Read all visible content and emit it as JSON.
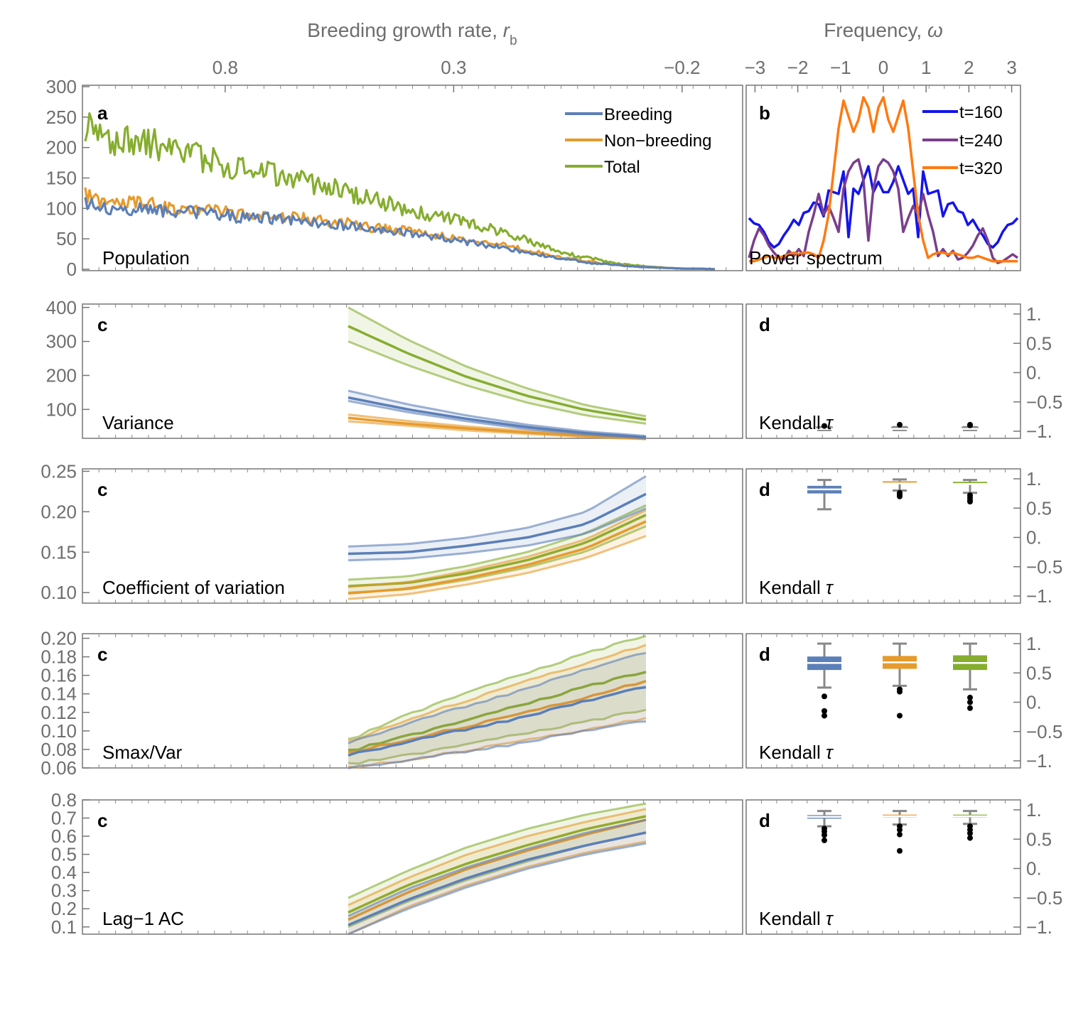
{
  "colors": {
    "breeding": "#5b7fb8",
    "nonbreeding": "#e69b2c",
    "total": "#86ad2f",
    "t160": "#1414ee",
    "t240": "#7a3e8c",
    "t320": "#ff7a10"
  },
  "top_axis": {
    "label_main": "Breeding growth rate, ",
    "label_italic": "r",
    "label_sub": "b"
  },
  "freq_axis": {
    "label_main": "Frequency, ",
    "label_italic": "ω"
  },
  "panel_letters": {
    "a": "a",
    "b": "b",
    "c": "c",
    "d": "d"
  },
  "titles": {
    "population": "Population",
    "power_spectrum": "Power spectrum",
    "variance": "Variance",
    "cv": "Coefficient of variation",
    "smax": "Smax/Var",
    "lag1": "Lag−1 AC",
    "kendall_main": "Kendall ",
    "kendall_sym": "τ"
  },
  "legend_a": [
    "Breeding",
    "Non−breeding",
    "Total"
  ],
  "legend_b": [
    "t=160",
    "t=240",
    "t=320"
  ],
  "chart_data": [
    {
      "id": "a",
      "type": "line",
      "title": "Population",
      "xlabel": "Breeding growth rate, r_b",
      "xlim": [
        1.1,
        -0.32
      ],
      "xticks": [
        0.8,
        0.3,
        -0.2
      ],
      "xtick_labels": [
        "0.8",
        "0.3",
        "−0.2"
      ],
      "ylim": [
        0,
        300
      ],
      "yticks": [
        0,
        50,
        100,
        150,
        200,
        250,
        300
      ],
      "series": [
        {
          "name": "Breeding",
          "x_start": 1.1,
          "x_end": -0.32,
          "values": [
            108,
            100,
            96,
            100,
            104,
            96,
            88,
            95,
            92,
            90,
            85,
            86,
            84,
            82,
            80,
            76,
            74,
            72,
            68,
            64,
            62,
            60,
            57,
            52,
            48,
            44,
            40,
            36,
            31,
            26,
            22,
            18,
            14,
            10,
            8,
            6,
            4,
            3,
            2,
            1,
            1,
            0
          ]
        },
        {
          "name": "Non−breeding",
          "x_start": 1.1,
          "x_end": -0.32,
          "values": [
            122,
            115,
            110,
            112,
            108,
            102,
            96,
            100,
            98,
            95,
            90,
            90,
            88,
            86,
            84,
            80,
            78,
            76,
            70,
            68,
            66,
            64,
            60,
            56,
            52,
            48,
            44,
            40,
            36,
            30,
            26,
            20,
            16,
            12,
            8,
            6,
            4,
            3,
            2,
            1,
            1,
            0
          ]
        },
        {
          "name": "Total",
          "x_start": 1.1,
          "x_end": -0.32,
          "values": [
            230,
            222,
            212,
            208,
            210,
            200,
            188,
            186,
            180,
            172,
            165,
            160,
            158,
            150,
            145,
            140,
            135,
            128,
            118,
            112,
            105,
            98,
            92,
            88,
            82,
            76,
            70,
            62,
            55,
            45,
            36,
            28,
            22,
            18,
            12,
            8,
            6,
            4,
            2,
            1,
            1,
            0
          ]
        }
      ]
    },
    {
      "id": "b",
      "type": "line",
      "title": "Power spectrum",
      "xlabel": "Frequency, ω",
      "xlim": [
        -3.14,
        3.14
      ],
      "xticks": [
        -3,
        -2,
        -1,
        0,
        1,
        2,
        3
      ],
      "xtick_labels": [
        "−3",
        "−2",
        "−1",
        "0",
        "1",
        "2",
        "3"
      ],
      "ylim": [
        0,
        1
      ],
      "series": [
        {
          "name": "t=160",
          "values": [
            0.28,
            0.25,
            0.24,
            0.2,
            0.14,
            0.11,
            0.13,
            0.18,
            0.22,
            0.27,
            0.24,
            0.31,
            0.32,
            0.37,
            0.36,
            0.29,
            0.44,
            0.43,
            0.42,
            0.55,
            0.17,
            0.45,
            0.42,
            0.5,
            0.58,
            0.43,
            0.49,
            0.43,
            0.43,
            0.49,
            0.58,
            0.5,
            0.42,
            0.45,
            0.17,
            0.55,
            0.42,
            0.43,
            0.44,
            0.29,
            0.36,
            0.37,
            0.32,
            0.31,
            0.24,
            0.27,
            0.22,
            0.18,
            0.13,
            0.11,
            0.14,
            0.2,
            0.24,
            0.25,
            0.28
          ]
        },
        {
          "name": "t=240",
          "values": [
            0.05,
            0.15,
            0.22,
            0.18,
            0.12,
            0.08,
            0.05,
            0.04,
            0.09,
            0.06,
            0.1,
            0.06,
            0.2,
            0.3,
            0.42,
            0.3,
            0.35,
            0.28,
            0.2,
            0.45,
            0.55,
            0.6,
            0.62,
            0.5,
            0.15,
            0.45,
            0.58,
            0.62,
            0.6,
            0.55,
            0.45,
            0.2,
            0.28,
            0.35,
            0.3,
            0.42,
            0.3,
            0.2,
            0.06,
            0.1,
            0.06,
            0.09,
            0.04,
            0.05,
            0.08,
            0.12,
            0.18,
            0.22,
            0.15,
            0.05,
            0.02,
            0.03,
            0.05,
            0.07,
            0.05
          ]
        },
        {
          "name": "t=320",
          "values": [
            0.03,
            0.03,
            0.04,
            0.05,
            0.06,
            0.05,
            0.05,
            0.06,
            0.07,
            0.08,
            0.07,
            0.08,
            0.08,
            0.07,
            0.05,
            0.15,
            0.3,
            0.55,
            0.8,
            0.96,
            0.87,
            0.78,
            0.85,
            0.98,
            0.92,
            0.78,
            0.92,
            0.98,
            0.85,
            0.78,
            0.87,
            0.96,
            0.8,
            0.55,
            0.3,
            0.15,
            0.05,
            0.07,
            0.08,
            0.08,
            0.07,
            0.08,
            0.07,
            0.06,
            0.05,
            0.05,
            0.06,
            0.05,
            0.04,
            0.03,
            0.03,
            0.03,
            0.03,
            0.03,
            0.03
          ]
        }
      ]
    },
    {
      "id": "c-variance",
      "type": "area",
      "title": "Variance",
      "x_start": 0.51,
      "x_end": 0.02,
      "ylim": [
        15,
        410
      ],
      "yticks": [
        100,
        200,
        300,
        400
      ],
      "ytick_labels": [
        "100",
        "200",
        "300",
        "400"
      ],
      "series": [
        {
          "name": "Breeding",
          "mean": [
            135,
            100,
            72,
            48,
            30,
            18
          ],
          "lo": [
            125,
            92,
            65,
            42,
            26,
            15
          ],
          "hi": [
            155,
            115,
            82,
            55,
            35,
            22
          ]
        },
        {
          "name": "Non−breeding",
          "mean": [
            75,
            58,
            44,
            32,
            22,
            14
          ],
          "lo": [
            65,
            52,
            38,
            28,
            19,
            12
          ],
          "hi": [
            85,
            66,
            50,
            37,
            26,
            17
          ]
        },
        {
          "name": "Total",
          "mean": [
            345,
            265,
            195,
            140,
            98,
            70
          ],
          "lo": [
            300,
            230,
            170,
            120,
            82,
            58
          ],
          "hi": [
            400,
            305,
            225,
            162,
            112,
            80
          ]
        }
      ]
    },
    {
      "id": "c-cv",
      "type": "area",
      "title": "Coefficient of variation",
      "x_start": 0.51,
      "x_end": 0.02,
      "ylim": [
        0.087,
        0.253
      ],
      "yticks": [
        0.1,
        0.15,
        0.2,
        0.25
      ],
      "ytick_labels": [
        "0.10",
        "0.15",
        "0.20",
        "0.25"
      ],
      "series": [
        {
          "name": "Breeding",
          "mean": [
            0.148,
            0.15,
            0.158,
            0.168,
            0.185,
            0.222
          ],
          "lo": [
            0.14,
            0.142,
            0.149,
            0.158,
            0.173,
            0.204
          ],
          "hi": [
            0.157,
            0.16,
            0.168,
            0.18,
            0.2,
            0.244
          ]
        },
        {
          "name": "Non−breeding",
          "mean": [
            0.099,
            0.105,
            0.118,
            0.134,
            0.155,
            0.188
          ],
          "lo": [
            0.092,
            0.098,
            0.11,
            0.124,
            0.143,
            0.17
          ],
          "hi": [
            0.107,
            0.113,
            0.127,
            0.144,
            0.166,
            0.202
          ]
        },
        {
          "name": "Total",
          "mean": [
            0.108,
            0.112,
            0.124,
            0.14,
            0.162,
            0.196
          ],
          "lo": [
            0.1,
            0.104,
            0.116,
            0.131,
            0.151,
            0.182
          ],
          "hi": [
            0.116,
            0.12,
            0.133,
            0.15,
            0.174,
            0.208
          ]
        }
      ]
    },
    {
      "id": "c-smax",
      "type": "area",
      "title": "Smax/Var",
      "x_start": 0.51,
      "x_end": 0.02,
      "ylim": [
        0.06,
        0.205
      ],
      "yticks": [
        0.06,
        0.08,
        0.1,
        0.12,
        0.14,
        0.16,
        0.18,
        0.2
      ],
      "ytick_labels": [
        "0.06",
        "0.08",
        "0.10",
        "0.12",
        "0.14",
        "0.16",
        "0.18",
        "0.20"
      ],
      "series": [
        {
          "name": "Breeding",
          "mean": [
            0.074,
            0.088,
            0.102,
            0.116,
            0.132,
            0.148
          ],
          "lo": [
            0.06,
            0.068,
            0.078,
            0.088,
            0.1,
            0.111
          ],
          "hi": [
            0.087,
            0.108,
            0.127,
            0.146,
            0.166,
            0.185
          ]
        },
        {
          "name": "Non−breeding",
          "mean": [
            0.076,
            0.09,
            0.105,
            0.12,
            0.137,
            0.154
          ],
          "lo": [
            0.06,
            0.068,
            0.079,
            0.09,
            0.102,
            0.114
          ],
          "hi": [
            0.088,
            0.112,
            0.133,
            0.154,
            0.174,
            0.193
          ]
        },
        {
          "name": "Total",
          "mean": [
            0.078,
            0.095,
            0.112,
            0.13,
            0.148,
            0.164
          ],
          "lo": [
            0.064,
            0.074,
            0.086,
            0.098,
            0.11,
            0.123
          ],
          "hi": [
            0.09,
            0.118,
            0.142,
            0.163,
            0.184,
            0.203
          ]
        }
      ]
    },
    {
      "id": "c-lag1",
      "type": "area",
      "title": "Lag−1 AC",
      "x_start": 0.51,
      "x_end": 0.02,
      "ylim": [
        0.06,
        0.8
      ],
      "yticks": [
        0.1,
        0.2,
        0.3,
        0.4,
        0.5,
        0.6,
        0.7,
        0.8
      ],
      "ytick_labels": [
        "0.1",
        "0.2",
        "0.3",
        "0.4",
        "0.5",
        "0.6",
        "0.7",
        "0.8"
      ],
      "series": [
        {
          "name": "Breeding",
          "mean": [
            0.11,
            0.25,
            0.37,
            0.47,
            0.55,
            0.62
          ],
          "lo": [
            0.06,
            0.2,
            0.32,
            0.42,
            0.5,
            0.56
          ],
          "hi": [
            0.16,
            0.31,
            0.43,
            0.53,
            0.62,
            0.69
          ]
        },
        {
          "name": "Non−breeding",
          "mean": [
            0.14,
            0.29,
            0.42,
            0.52,
            0.61,
            0.69
          ],
          "lo": [
            0.06,
            0.21,
            0.33,
            0.43,
            0.51,
            0.57
          ],
          "hi": [
            0.22,
            0.37,
            0.5,
            0.6,
            0.68,
            0.75
          ]
        },
        {
          "name": "Total",
          "mean": [
            0.18,
            0.33,
            0.45,
            0.55,
            0.64,
            0.71
          ],
          "lo": [
            0.1,
            0.24,
            0.36,
            0.46,
            0.55,
            0.62
          ],
          "hi": [
            0.26,
            0.41,
            0.54,
            0.64,
            0.72,
            0.78
          ]
        }
      ]
    },
    {
      "id": "d",
      "type": "box",
      "title": "Kendall τ",
      "ylim": [
        -1.05,
        1.05
      ],
      "yticks": [
        1,
        0.5,
        0,
        -0.5,
        -1
      ],
      "ytick_labels": [
        "1.",
        "0.5",
        "0.",
        "−0.5",
        "−1."
      ],
      "groups": [
        "Breeding",
        "Non−breeding",
        "Total"
      ],
      "panels": [
        {
          "metric": "Variance",
          "boxes": [
            {
              "q1": -0.97,
              "median": -0.96,
              "q3": -0.94,
              "lo": -0.98,
              "hi": -0.93,
              "outliers": [
                -0.91
              ]
            },
            {
              "q1": -0.97,
              "median": -0.96,
              "q3": -0.94,
              "lo": -0.98,
              "hi": -0.93,
              "outliers": [
                -0.89
              ]
            },
            {
              "q1": -0.97,
              "median": -0.96,
              "q3": -0.94,
              "lo": -0.98,
              "hi": -0.93,
              "outliers": [
                -0.9,
                -0.89
              ]
            }
          ]
        },
        {
          "metric": "Coefficient of variation",
          "boxes": [
            {
              "q1": 0.75,
              "median": 0.82,
              "q3": 0.88,
              "lo": 0.48,
              "hi": 0.98,
              "outliers": []
            },
            {
              "q1": 0.91,
              "median": 0.92,
              "q3": 0.93,
              "lo": 0.8,
              "hi": 0.99,
              "outliers": [
                0.76,
                0.73,
                0.7
              ]
            },
            {
              "q1": 0.9,
              "median": 0.91,
              "q3": 0.93,
              "lo": 0.76,
              "hi": 0.98,
              "outliers": [
                0.72,
                0.68,
                0.64,
                0.61
              ]
            }
          ]
        },
        {
          "metric": "Smax/Var",
          "boxes": [
            {
              "q1": 0.55,
              "median": 0.67,
              "q3": 0.78,
              "lo": 0.25,
              "hi": 1.0,
              "outliers": [
                0.1,
                -0.15,
                -0.23
              ]
            },
            {
              "q1": 0.57,
              "median": 0.68,
              "q3": 0.79,
              "lo": 0.28,
              "hi": 1.0,
              "outliers": [
                0.22,
                0.18,
                -0.23
              ]
            },
            {
              "q1": 0.55,
              "median": 0.67,
              "q3": 0.8,
              "lo": 0.22,
              "hi": 1.0,
              "outliers": [
                0.08,
                0.0,
                -0.1
              ]
            }
          ]
        },
        {
          "metric": "Lag−1 AC",
          "boxes": [
            {
              "q1": 0.85,
              "median": 0.88,
              "q3": 0.91,
              "lo": 0.72,
              "hi": 0.98,
              "outliers": [
                0.68,
                0.63,
                0.57,
                0.48
              ]
            },
            {
              "q1": 0.87,
              "median": 0.89,
              "q3": 0.91,
              "lo": 0.75,
              "hi": 0.98,
              "outliers": [
                0.72,
                0.66,
                0.58,
                0.3
              ]
            },
            {
              "q1": 0.87,
              "median": 0.89,
              "q3": 0.91,
              "lo": 0.76,
              "hi": 0.98,
              "outliers": [
                0.72,
                0.66,
                0.6,
                0.52
              ]
            }
          ]
        }
      ]
    }
  ]
}
